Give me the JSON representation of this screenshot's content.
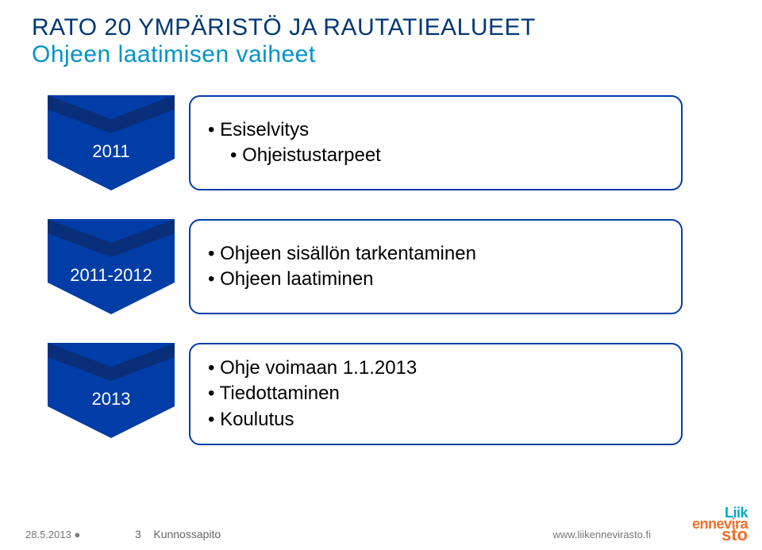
{
  "title": "RATO 20 YMPÄRISTÖ JA RAUTATIEALUEET",
  "subtitle": "Ohjeen laatimisen vaiheet",
  "title_color": "#003876",
  "subtitle_color": "#0093c7",
  "chevron_fill": "#003da6",
  "box_border": "#003da6",
  "rows": [
    {
      "label": "2011",
      "items": [
        {
          "text": "Esiselvitys",
          "sub": false
        },
        {
          "text": "Ohjeistustarpeet",
          "sub": true
        }
      ]
    },
    {
      "label": "2011-2012",
      "items": [
        {
          "text": "Ohjeen sisällön tarkentaminen",
          "sub": false
        },
        {
          "text": "Ohjeen laatiminen",
          "sub": false
        }
      ]
    },
    {
      "label": "2013",
      "items": [
        {
          "text": "Ohje voimaan 1.1.2013",
          "sub": false
        },
        {
          "text": "Tiedottaminen",
          "sub": false
        },
        {
          "text": "Koulutus",
          "sub": false
        }
      ]
    }
  ],
  "footer": {
    "date": "28.5.2013 ●",
    "page": "3",
    "section": "Kunnossapito",
    "url": "www.liikennevirasto.fi"
  },
  "logo": {
    "l1": "Liik",
    "l2": "ennevira",
    "l3": "sto"
  }
}
